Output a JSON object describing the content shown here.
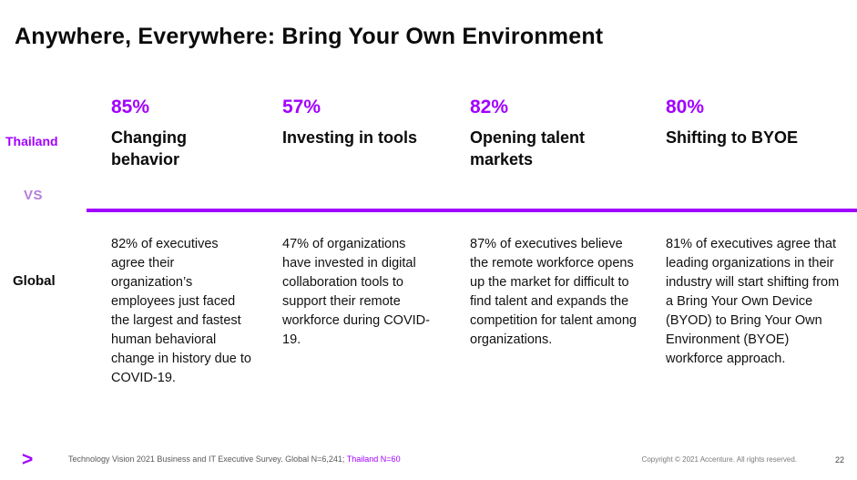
{
  "slide": {
    "title": "Anywhere, Everywhere: Bring Your Own Environment",
    "row_labels": {
      "thailand": "Thailand",
      "vs": "VS",
      "global": "Global"
    },
    "columns": [
      {
        "stat": "85%",
        "heading": "Changing behavior",
        "body": "82% of executives agree their organization’s employees just faced the largest and fastest human behavioral change in history due to COVID-19."
      },
      {
        "stat": "57%",
        "heading": "Investing in tools",
        "body": "47% of organizations have invested in digital collaboration tools to support their remote workforce during COVID-19."
      },
      {
        "stat": "82%",
        "heading": "Opening talent markets",
        "body": "87% of executives believe the remote workforce opens up the market for difficult to find talent and expands the competition for talent among organizations."
      },
      {
        "stat": "80%",
        "heading": "Shifting to BYOE",
        "body": "81% of executives agree that leading organizations in their industry will start shifting from a Bring Your Own Device (BYOD) to Bring Your Own Environment (BYOE) workforce approach."
      }
    ],
    "footer": {
      "logo": ">",
      "source_plain": "Technology Vision 2021 Business and IT Executive Survey. Global N=6,241; ",
      "source_highlight": "Thailand N=60",
      "copyright": "Copyright © 2021 Accenture. All rights reserved.",
      "page_number": "22"
    },
    "colors": {
      "accent": "#a100ff",
      "vs_label": "#b57edb"
    }
  }
}
